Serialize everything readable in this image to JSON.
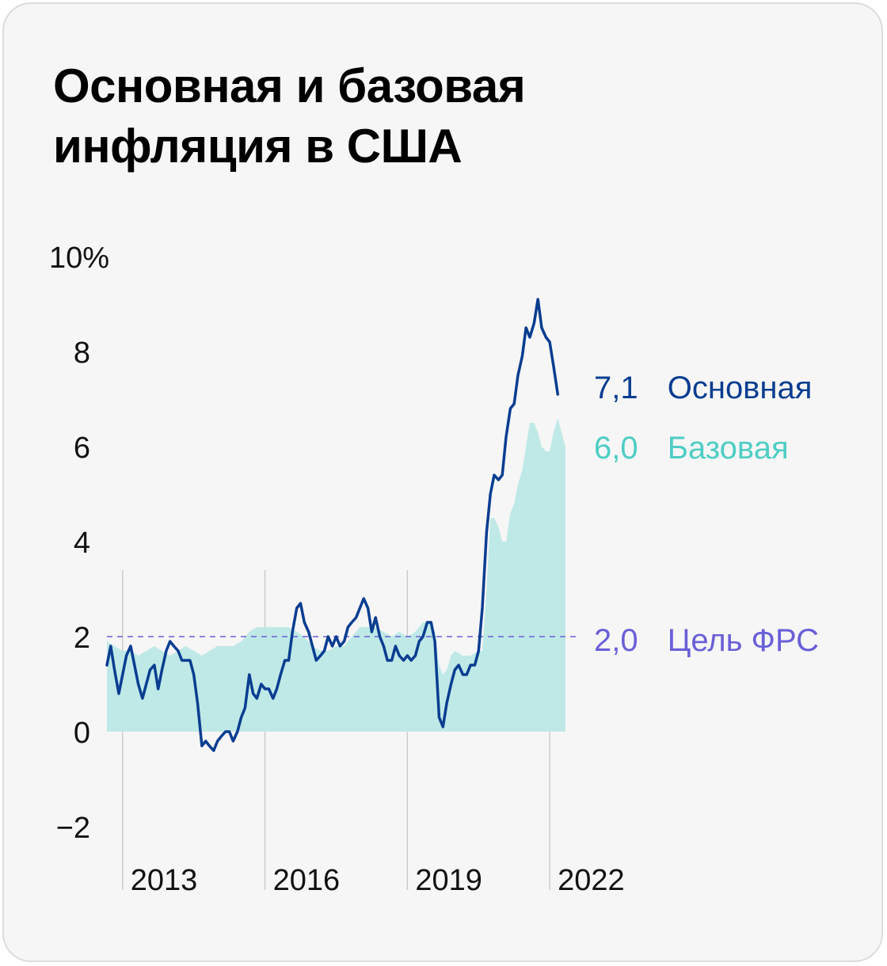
{
  "title": {
    "line1": "Основная и базовая",
    "line2": "инфляция в США"
  },
  "colors": {
    "background": "#f6f6f6",
    "headline": "#0a3d91",
    "core": "#bfe9e6",
    "core_label": "#4ecdc4",
    "target": "#6a5fd8",
    "grid": "#cccccc"
  },
  "chart_data": {
    "type": "line",
    "title": "Основная и базовая инфляция в США",
    "ylim": [
      -2,
      10
    ],
    "yticks": [
      {
        "value": 10,
        "label": "10%"
      },
      {
        "value": 8,
        "label": "8"
      },
      {
        "value": 6,
        "label": "6"
      },
      {
        "value": 4,
        "label": "4"
      },
      {
        "value": 2,
        "label": "2"
      },
      {
        "value": 0,
        "label": "0"
      },
      {
        "value": -2,
        "label": "−2"
      }
    ],
    "xrange": [
      2012.67,
      2022.583
    ],
    "xticks": [
      {
        "value": 2013,
        "label": "2013"
      },
      {
        "value": 2016,
        "label": "2016"
      },
      {
        "value": 2019,
        "label": "2019"
      },
      {
        "value": 2022,
        "label": "2022"
      }
    ],
    "series": [
      {
        "name": "Основная",
        "style": "line",
        "last_label": "7,1",
        "points": [
          [
            2012.67,
            1.4
          ],
          [
            2012.75,
            1.8
          ],
          [
            2012.83,
            1.3
          ],
          [
            2012.92,
            0.8
          ],
          [
            2013.0,
            1.2
          ],
          [
            2013.08,
            1.6
          ],
          [
            2013.17,
            1.8
          ],
          [
            2013.25,
            1.4
          ],
          [
            2013.33,
            1.0
          ],
          [
            2013.42,
            0.7
          ],
          [
            2013.5,
            1.0
          ],
          [
            2013.58,
            1.3
          ],
          [
            2013.67,
            1.4
          ],
          [
            2013.75,
            0.9
          ],
          [
            2013.83,
            1.3
          ],
          [
            2013.92,
            1.7
          ],
          [
            2014.0,
            1.9
          ],
          [
            2014.08,
            1.8
          ],
          [
            2014.17,
            1.7
          ],
          [
            2014.25,
            1.5
          ],
          [
            2014.33,
            1.5
          ],
          [
            2014.42,
            1.5
          ],
          [
            2014.5,
            1.2
          ],
          [
            2014.58,
            0.6
          ],
          [
            2014.67,
            -0.3
          ],
          [
            2014.75,
            -0.2
          ],
          [
            2014.83,
            -0.3
          ],
          [
            2014.92,
            -0.4
          ],
          [
            2015.0,
            -0.2
          ],
          [
            2015.08,
            -0.1
          ],
          [
            2015.17,
            0.0
          ],
          [
            2015.25,
            0.0
          ],
          [
            2015.33,
            -0.2
          ],
          [
            2015.42,
            0.0
          ],
          [
            2015.5,
            0.3
          ],
          [
            2015.58,
            0.5
          ],
          [
            2015.67,
            1.2
          ],
          [
            2015.75,
            0.8
          ],
          [
            2015.83,
            0.7
          ],
          [
            2015.92,
            1.0
          ],
          [
            2016.0,
            0.9
          ],
          [
            2016.08,
            0.9
          ],
          [
            2016.17,
            0.7
          ],
          [
            2016.25,
            0.9
          ],
          [
            2016.33,
            1.2
          ],
          [
            2016.42,
            1.5
          ],
          [
            2016.5,
            1.5
          ],
          [
            2016.58,
            2.1
          ],
          [
            2016.67,
            2.6
          ],
          [
            2016.75,
            2.7
          ],
          [
            2016.83,
            2.3
          ],
          [
            2016.92,
            2.1
          ],
          [
            2017.0,
            1.8
          ],
          [
            2017.08,
            1.5
          ],
          [
            2017.17,
            1.6
          ],
          [
            2017.25,
            1.7
          ],
          [
            2017.33,
            2.0
          ],
          [
            2017.42,
            1.8
          ],
          [
            2017.5,
            2.0
          ],
          [
            2017.58,
            1.8
          ],
          [
            2017.67,
            1.9
          ],
          [
            2017.75,
            2.2
          ],
          [
            2017.83,
            2.3
          ],
          [
            2017.92,
            2.4
          ],
          [
            2018.0,
            2.6
          ],
          [
            2018.08,
            2.8
          ],
          [
            2018.17,
            2.6
          ],
          [
            2018.25,
            2.1
          ],
          [
            2018.33,
            2.4
          ],
          [
            2018.42,
            2.0
          ],
          [
            2018.5,
            1.8
          ],
          [
            2018.58,
            1.5
          ],
          [
            2018.67,
            1.5
          ],
          [
            2018.75,
            1.8
          ],
          [
            2018.83,
            1.6
          ],
          [
            2018.92,
            1.5
          ],
          [
            2019.0,
            1.6
          ],
          [
            2019.08,
            1.5
          ],
          [
            2019.17,
            1.6
          ],
          [
            2019.25,
            1.9
          ],
          [
            2019.33,
            2.0
          ],
          [
            2019.42,
            2.3
          ],
          [
            2019.5,
            2.3
          ],
          [
            2019.58,
            1.9
          ],
          [
            2019.67,
            0.3
          ],
          [
            2019.75,
            0.1
          ],
          [
            2019.83,
            0.6
          ],
          [
            2019.92,
            1.0
          ],
          [
            2020.0,
            1.3
          ],
          [
            2020.08,
            1.4
          ],
          [
            2020.17,
            1.2
          ],
          [
            2020.25,
            1.2
          ],
          [
            2020.33,
            1.4
          ],
          [
            2020.42,
            1.4
          ],
          [
            2020.5,
            1.7
          ],
          [
            2020.58,
            2.6
          ],
          [
            2020.67,
            4.2
          ],
          [
            2020.75,
            5.0
          ],
          [
            2020.83,
            5.4
          ],
          [
            2020.92,
            5.3
          ],
          [
            2021.0,
            5.4
          ],
          [
            2021.08,
            6.2
          ],
          [
            2021.17,
            6.8
          ],
          [
            2021.25,
            6.9
          ],
          [
            2021.33,
            7.5
          ],
          [
            2021.42,
            7.9
          ],
          [
            2021.5,
            8.5
          ],
          [
            2021.58,
            8.3
          ],
          [
            2021.67,
            8.6
          ],
          [
            2021.75,
            9.1
          ],
          [
            2021.83,
            8.5
          ],
          [
            2021.92,
            8.3
          ],
          [
            2022.0,
            8.2
          ],
          [
            2022.08,
            7.7
          ],
          [
            2022.17,
            7.1
          ]
        ]
      },
      {
        "name": "Базовая",
        "style": "area",
        "last_label": "6,0",
        "points": [
          [
            2012.67,
            1.9
          ],
          [
            2012.83,
            1.8
          ],
          [
            2013.0,
            1.7
          ],
          [
            2013.17,
            1.7
          ],
          [
            2013.33,
            1.6
          ],
          [
            2013.5,
            1.7
          ],
          [
            2013.67,
            1.8
          ],
          [
            2013.83,
            1.7
          ],
          [
            2014.0,
            1.6
          ],
          [
            2014.17,
            1.7
          ],
          [
            2014.33,
            1.8
          ],
          [
            2014.5,
            1.7
          ],
          [
            2014.67,
            1.6
          ],
          [
            2014.83,
            1.7
          ],
          [
            2015.0,
            1.8
          ],
          [
            2015.17,
            1.8
          ],
          [
            2015.33,
            1.8
          ],
          [
            2015.5,
            1.9
          ],
          [
            2015.67,
            2.1
          ],
          [
            2015.83,
            2.2
          ],
          [
            2016.0,
            2.2
          ],
          [
            2016.17,
            2.2
          ],
          [
            2016.33,
            2.2
          ],
          [
            2016.5,
            2.2
          ],
          [
            2016.67,
            2.1
          ],
          [
            2016.83,
            2.0
          ],
          [
            2017.0,
            1.8
          ],
          [
            2017.17,
            1.7
          ],
          [
            2017.33,
            1.7
          ],
          [
            2017.5,
            1.8
          ],
          [
            2017.67,
            1.8
          ],
          [
            2017.83,
            2.0
          ],
          [
            2018.0,
            2.2
          ],
          [
            2018.17,
            2.2
          ],
          [
            2018.33,
            2.2
          ],
          [
            2018.5,
            2.1
          ],
          [
            2018.67,
            2.0
          ],
          [
            2018.83,
            2.1
          ],
          [
            2019.0,
            2.0
          ],
          [
            2019.17,
            2.1
          ],
          [
            2019.33,
            2.3
          ],
          [
            2019.5,
            2.3
          ],
          [
            2019.58,
            2.1
          ],
          [
            2019.67,
            1.4
          ],
          [
            2019.75,
            1.2
          ],
          [
            2019.83,
            1.3
          ],
          [
            2019.92,
            1.6
          ],
          [
            2020.0,
            1.7
          ],
          [
            2020.17,
            1.6
          ],
          [
            2020.33,
            1.6
          ],
          [
            2020.5,
            1.7
          ],
          [
            2020.58,
            1.7
          ],
          [
            2020.67,
            3.0
          ],
          [
            2020.75,
            4.5
          ],
          [
            2020.83,
            4.5
          ],
          [
            2020.92,
            4.3
          ],
          [
            2021.0,
            4.0
          ],
          [
            2021.08,
            4.0
          ],
          [
            2021.17,
            4.6
          ],
          [
            2021.25,
            4.8
          ],
          [
            2021.33,
            5.2
          ],
          [
            2021.42,
            5.5
          ],
          [
            2021.5,
            6.0
          ],
          [
            2021.58,
            6.5
          ],
          [
            2021.67,
            6.5
          ],
          [
            2021.75,
            6.3
          ],
          [
            2021.83,
            6.0
          ],
          [
            2021.92,
            5.9
          ],
          [
            2022.0,
            5.9
          ],
          [
            2022.08,
            6.3
          ],
          [
            2022.17,
            6.6
          ],
          [
            2022.25,
            6.3
          ],
          [
            2022.33,
            6.0
          ]
        ]
      }
    ],
    "reference_line": {
      "value": 2.0,
      "name": "Цель ФРС",
      "label": "2,0"
    }
  }
}
